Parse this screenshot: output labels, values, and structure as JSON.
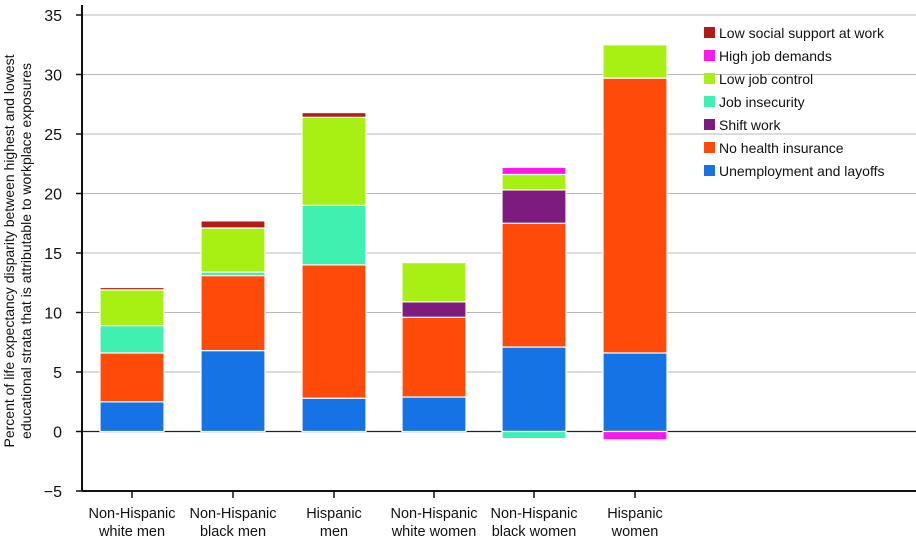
{
  "chart_data": {
    "type": "bar",
    "stacked": true,
    "title": "",
    "xlabel": "",
    "ylabel": [
      "Percent of life expectancy disparity between highest and lowest",
      "educational strata that is attributable to workplace exposures"
    ],
    "ylim": [
      -5,
      35
    ],
    "yticks": [
      -5,
      0,
      5,
      10,
      15,
      20,
      25,
      30,
      35
    ],
    "grid": true,
    "legend_position": "top-right",
    "categories": [
      [
        "Non-Hispanic",
        "white men"
      ],
      [
        "Non-Hispanic",
        "black men"
      ],
      [
        "Hispanic",
        "men"
      ],
      [
        "Non-Hispanic",
        "white women"
      ],
      [
        "Non-Hispanic",
        "black women"
      ],
      [
        "Hispanic",
        "women"
      ]
    ],
    "series": [
      {
        "name": "Unemployment and layoffs",
        "color": "#1673e6",
        "values": [
          2.5,
          6.8,
          2.8,
          2.9,
          7.1,
          6.6
        ]
      },
      {
        "name": "No health insurance",
        "color": "#ff4a0a",
        "values": [
          4.1,
          6.3,
          11.2,
          6.7,
          10.4,
          23.1
        ]
      },
      {
        "name": "Shift work",
        "color": "#7d1b7e",
        "values": [
          0.0,
          0.0,
          0.0,
          1.3,
          2.8,
          0.0
        ]
      },
      {
        "name": "Job insecurity",
        "color": "#40f0b0",
        "values": [
          2.3,
          0.3,
          5.0,
          0.0,
          -0.6,
          0.0
        ]
      },
      {
        "name": "Low job control",
        "color": "#a8f013",
        "values": [
          3.0,
          3.7,
          7.4,
          3.3,
          1.3,
          2.8
        ]
      },
      {
        "name": "High job demands",
        "color": "#ff19e8",
        "values": [
          0.0,
          0.0,
          0.0,
          0.0,
          0.6,
          -0.7
        ]
      },
      {
        "name": "Low social support at work",
        "color": "#b41c1c",
        "values": [
          0.2,
          0.6,
          0.4,
          0.1,
          0.0,
          0.0
        ]
      }
    ],
    "legend_order": [
      6,
      5,
      4,
      3,
      2,
      1,
      0
    ]
  }
}
